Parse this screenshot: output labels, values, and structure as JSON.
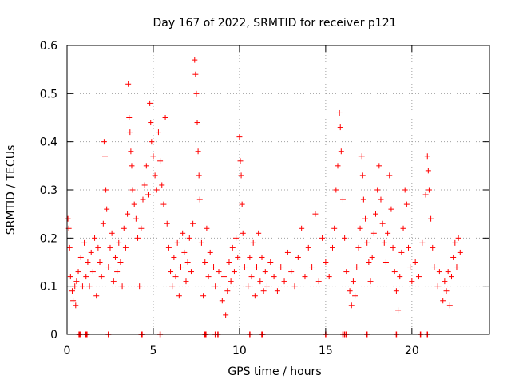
{
  "chart_data": {
    "type": "scatter",
    "title": "Day 167 of 2022, SRMTID for receiver p121",
    "xlabel": "GPS time / hours",
    "ylabel": "SRMTID / TECUs",
    "xlim": [
      0,
      24.5
    ],
    "ylim": [
      0,
      0.6
    ],
    "xticks": [
      0,
      5,
      10,
      15,
      20
    ],
    "xtick_labels": [
      "0",
      "5",
      "10",
      "15",
      "20"
    ],
    "yticks": [
      0,
      0.1,
      0.2,
      0.3,
      0.4,
      0.5,
      0.6
    ],
    "ytick_labels": [
      "0",
      "0.1",
      "0.2",
      "0.3",
      "0.4",
      "0.5",
      "0.6"
    ],
    "grid": true,
    "marker": "+",
    "color": "#ff0000",
    "series": [
      {
        "name": "SRMTID",
        "points": [
          [
            0.05,
            0.24
          ],
          [
            0.1,
            0.22
          ],
          [
            0.15,
            0.18
          ],
          [
            0.2,
            0.12
          ],
          [
            0.3,
            0.09
          ],
          [
            0.35,
            0.07
          ],
          [
            0.45,
            0.1
          ],
          [
            0.5,
            0.06
          ],
          [
            0.55,
            0.11
          ],
          [
            0.65,
            0.13
          ],
          [
            0.8,
            0.16
          ],
          [
            0.9,
            0.1
          ],
          [
            1.0,
            0.19
          ],
          [
            1.1,
            0.12
          ],
          [
            1.2,
            0.15
          ],
          [
            1.3,
            0.1
          ],
          [
            1.4,
            0.17
          ],
          [
            1.5,
            0.13
          ],
          [
            1.6,
            0.2
          ],
          [
            1.7,
            0.08
          ],
          [
            1.8,
            0.18
          ],
          [
            1.9,
            0.15
          ],
          [
            2.0,
            0.12
          ],
          [
            2.1,
            0.23
          ],
          [
            2.15,
            0.4
          ],
          [
            2.2,
            0.37
          ],
          [
            2.25,
            0.3
          ],
          [
            2.3,
            0.26
          ],
          [
            2.4,
            0.14
          ],
          [
            2.5,
            0.18
          ],
          [
            2.6,
            0.21
          ],
          [
            2.7,
            0.11
          ],
          [
            2.8,
            0.16
          ],
          [
            2.9,
            0.13
          ],
          [
            3.0,
            0.19
          ],
          [
            3.1,
            0.15
          ],
          [
            3.2,
            0.1
          ],
          [
            3.3,
            0.22
          ],
          [
            3.4,
            0.18
          ],
          [
            3.5,
            0.25
          ],
          [
            3.55,
            0.52
          ],
          [
            3.6,
            0.45
          ],
          [
            3.65,
            0.42
          ],
          [
            3.7,
            0.38
          ],
          [
            3.75,
            0.35
          ],
          [
            3.8,
            0.3
          ],
          [
            3.9,
            0.27
          ],
          [
            4.0,
            0.24
          ],
          [
            4.1,
            0.2
          ],
          [
            4.2,
            0.1
          ],
          [
            4.3,
            0.22
          ],
          [
            4.4,
            0.28
          ],
          [
            4.5,
            0.31
          ],
          [
            4.6,
            0.35
          ],
          [
            4.7,
            0.29
          ],
          [
            4.8,
            0.48
          ],
          [
            4.85,
            0.44
          ],
          [
            4.9,
            0.4
          ],
          [
            5.0,
            0.37
          ],
          [
            5.1,
            0.33
          ],
          [
            5.2,
            0.3
          ],
          [
            5.3,
            0.42
          ],
          [
            5.4,
            0.36
          ],
          [
            5.5,
            0.31
          ],
          [
            5.6,
            0.27
          ],
          [
            5.7,
            0.45
          ],
          [
            5.8,
            0.23
          ],
          [
            5.9,
            0.18
          ],
          [
            6.0,
            0.13
          ],
          [
            6.1,
            0.1
          ],
          [
            6.2,
            0.16
          ],
          [
            6.3,
            0.12
          ],
          [
            6.4,
            0.19
          ],
          [
            6.5,
            0.08
          ],
          [
            6.6,
            0.14
          ],
          [
            6.7,
            0.21
          ],
          [
            6.8,
            0.17
          ],
          [
            6.9,
            0.11
          ],
          [
            7.0,
            0.15
          ],
          [
            7.1,
            0.2
          ],
          [
            7.2,
            0.13
          ],
          [
            7.3,
            0.23
          ],
          [
            7.4,
            0.57
          ],
          [
            7.45,
            0.54
          ],
          [
            7.5,
            0.5
          ],
          [
            7.55,
            0.44
          ],
          [
            7.6,
            0.38
          ],
          [
            7.65,
            0.33
          ],
          [
            7.7,
            0.28
          ],
          [
            7.8,
            0.19
          ],
          [
            7.9,
            0.08
          ],
          [
            8.0,
            0.15
          ],
          [
            8.1,
            0.22
          ],
          [
            8.2,
            0.12
          ],
          [
            8.3,
            0.17
          ],
          [
            8.5,
            0.14
          ],
          [
            8.6,
            0.1
          ],
          [
            8.8,
            0.13
          ],
          [
            9.0,
            0.07
          ],
          [
            9.1,
            0.12
          ],
          [
            9.2,
            0.04
          ],
          [
            9.3,
            0.09
          ],
          [
            9.4,
            0.15
          ],
          [
            9.5,
            0.11
          ],
          [
            9.6,
            0.18
          ],
          [
            9.7,
            0.13
          ],
          [
            9.8,
            0.2
          ],
          [
            9.9,
            0.16
          ],
          [
            10.0,
            0.41
          ],
          [
            10.05,
            0.36
          ],
          [
            10.1,
            0.33
          ],
          [
            10.15,
            0.27
          ],
          [
            10.2,
            0.21
          ],
          [
            10.3,
            0.14
          ],
          [
            10.5,
            0.1
          ],
          [
            10.6,
            0.16
          ],
          [
            10.7,
            0.12
          ],
          [
            10.8,
            0.19
          ],
          [
            10.9,
            0.08
          ],
          [
            11.0,
            0.14
          ],
          [
            11.1,
            0.21
          ],
          [
            11.2,
            0.11
          ],
          [
            11.3,
            0.16
          ],
          [
            11.4,
            0.09
          ],
          [
            11.5,
            0.13
          ],
          [
            11.6,
            0.1
          ],
          [
            11.8,
            0.15
          ],
          [
            12.0,
            0.12
          ],
          [
            12.2,
            0.09
          ],
          [
            12.4,
            0.14
          ],
          [
            12.6,
            0.11
          ],
          [
            12.8,
            0.17
          ],
          [
            13.0,
            0.13
          ],
          [
            13.2,
            0.1
          ],
          [
            13.4,
            0.16
          ],
          [
            13.6,
            0.22
          ],
          [
            13.8,
            0.12
          ],
          [
            14.0,
            0.18
          ],
          [
            14.2,
            0.14
          ],
          [
            14.4,
            0.25
          ],
          [
            14.6,
            0.11
          ],
          [
            14.8,
            0.2
          ],
          [
            15.0,
            0.15
          ],
          [
            15.2,
            0.12
          ],
          [
            15.4,
            0.18
          ],
          [
            15.5,
            0.22
          ],
          [
            15.6,
            0.3
          ],
          [
            15.7,
            0.35
          ],
          [
            15.8,
            0.46
          ],
          [
            15.85,
            0.43
          ],
          [
            15.9,
            0.38
          ],
          [
            16.0,
            0.28
          ],
          [
            16.1,
            0.2
          ],
          [
            16.2,
            0.13
          ],
          [
            16.4,
            0.09
          ],
          [
            16.5,
            0.06
          ],
          [
            16.6,
            0.11
          ],
          [
            16.7,
            0.08
          ],
          [
            16.8,
            0.14
          ],
          [
            16.9,
            0.18
          ],
          [
            17.0,
            0.22
          ],
          [
            17.1,
            0.37
          ],
          [
            17.15,
            0.33
          ],
          [
            17.2,
            0.28
          ],
          [
            17.3,
            0.24
          ],
          [
            17.4,
            0.19
          ],
          [
            17.5,
            0.15
          ],
          [
            17.6,
            0.11
          ],
          [
            17.7,
            0.16
          ],
          [
            17.8,
            0.21
          ],
          [
            17.9,
            0.25
          ],
          [
            18.0,
            0.3
          ],
          [
            18.1,
            0.35
          ],
          [
            18.2,
            0.28
          ],
          [
            18.3,
            0.23
          ],
          [
            18.4,
            0.19
          ],
          [
            18.5,
            0.15
          ],
          [
            18.6,
            0.21
          ],
          [
            18.7,
            0.33
          ],
          [
            18.8,
            0.26
          ],
          [
            18.9,
            0.18
          ],
          [
            19.0,
            0.13
          ],
          [
            19.1,
            0.09
          ],
          [
            19.2,
            0.05
          ],
          [
            19.3,
            0.12
          ],
          [
            19.4,
            0.17
          ],
          [
            19.5,
            0.22
          ],
          [
            19.6,
            0.3
          ],
          [
            19.7,
            0.27
          ],
          [
            19.8,
            0.18
          ],
          [
            19.9,
            0.14
          ],
          [
            20.0,
            0.11
          ],
          [
            20.2,
            0.15
          ],
          [
            20.4,
            0.12
          ],
          [
            20.6,
            0.19
          ],
          [
            20.8,
            0.29
          ],
          [
            20.9,
            0.37
          ],
          [
            20.95,
            0.34
          ],
          [
            21.0,
            0.3
          ],
          [
            21.1,
            0.24
          ],
          [
            21.2,
            0.18
          ],
          [
            21.3,
            0.14
          ],
          [
            21.5,
            0.1
          ],
          [
            21.6,
            0.13
          ],
          [
            21.8,
            0.07
          ],
          [
            21.9,
            0.11
          ],
          [
            22.0,
            0.09
          ],
          [
            22.1,
            0.13
          ],
          [
            22.2,
            0.06
          ],
          [
            22.3,
            0.12
          ],
          [
            22.4,
            0.16
          ],
          [
            22.5,
            0.19
          ],
          [
            22.6,
            0.14
          ],
          [
            22.7,
            0.2
          ],
          [
            22.8,
            0.17
          ]
        ]
      }
    ],
    "zero_marks_x": [
      0.7,
      0.75,
      1.1,
      1.15,
      2.4,
      4.3,
      4.35,
      5.4,
      8.0,
      8.05,
      8.6,
      8.75,
      10.6,
      11.3,
      11.35,
      15.0,
      16.0,
      16.1,
      16.2,
      17.4,
      19.1,
      20.5,
      20.9
    ]
  }
}
